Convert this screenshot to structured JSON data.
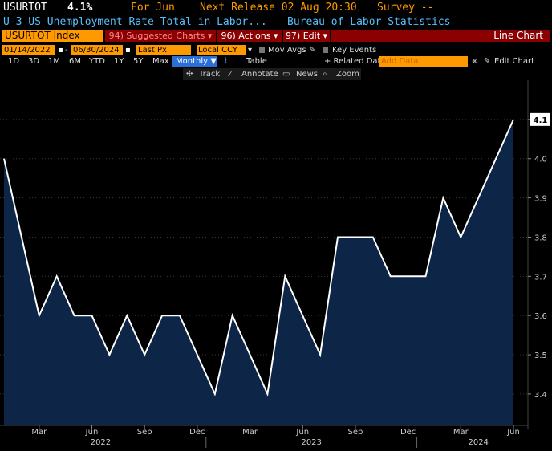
{
  "header": {
    "ticker": "USURTOT",
    "value": "4.1%",
    "period": "For Jun",
    "next_release": "Next Release 02 Aug 20:30",
    "survey": "Survey --",
    "description": "U-3 US Unemployment Rate Total in Labor...",
    "source": "Bureau of Labor Statistics"
  },
  "toolbar": {
    "security": "USURTOT Index",
    "suggested": "94) Suggested Charts ▾",
    "actions": "96) Actions ▾",
    "edit": "97) Edit ▾",
    "chart_type": "Line Chart"
  },
  "controls": {
    "start_date": "01/14/2022",
    "end_date": "06/30/2024",
    "field": "Last Px",
    "currency": "Local CCY",
    "mov_avgs": "Mov Avgs",
    "key_events": "Key Events",
    "related": "+ Related Dat",
    "add_data_placeholder": "Add Data",
    "edit_chart": "Edit Chart"
  },
  "ranges": [
    "1D",
    "3D",
    "1M",
    "6M",
    "YTD",
    "1Y",
    "5Y",
    "Max"
  ],
  "frequency": "Monthly ▼",
  "table_label": "Table",
  "tools": [
    "Track",
    "Annotate",
    "News",
    "Zoom"
  ],
  "colors": {
    "line": "#ffffff",
    "area": "#0d2547",
    "accent": "#ff9900",
    "header_blue": "#55c0ff",
    "red_button": "#8b0000"
  },
  "chart_data": {
    "type": "area",
    "title": "",
    "xlabel": "",
    "ylabel": "",
    "ylim": [
      3.32,
      4.2
    ],
    "y_ticks": [
      "3.4",
      "3.5",
      "3.6",
      "3.7",
      "3.8",
      "3.9",
      "4.0",
      "4.1"
    ],
    "x_month_labels": [
      "Mar",
      "Jun",
      "Sep",
      "Dec",
      "Mar",
      "Jun",
      "Sep",
      "Dec",
      "Mar",
      "Jun"
    ],
    "x_year_labels": [
      "2022",
      "2023",
      "2024"
    ],
    "x": [
      "2022-01",
      "2022-02",
      "2022-03",
      "2022-04",
      "2022-05",
      "2022-06",
      "2022-07",
      "2022-08",
      "2022-09",
      "2022-10",
      "2022-11",
      "2022-12",
      "2023-01",
      "2023-02",
      "2023-03",
      "2023-04",
      "2023-05",
      "2023-06",
      "2023-07",
      "2023-08",
      "2023-09",
      "2023-10",
      "2023-11",
      "2023-12",
      "2024-01",
      "2024-02",
      "2024-03",
      "2024-04",
      "2024-05",
      "2024-06"
    ],
    "values": [
      4.0,
      3.8,
      3.6,
      3.7,
      3.6,
      3.6,
      3.5,
      3.6,
      3.5,
      3.6,
      3.6,
      3.5,
      3.4,
      3.6,
      3.5,
      3.4,
      3.7,
      3.6,
      3.5,
      3.8,
      3.8,
      3.8,
      3.7,
      3.7,
      3.7,
      3.9,
      3.8,
      3.9,
      4.0,
      4.1
    ],
    "last_value_label": "4.1"
  }
}
